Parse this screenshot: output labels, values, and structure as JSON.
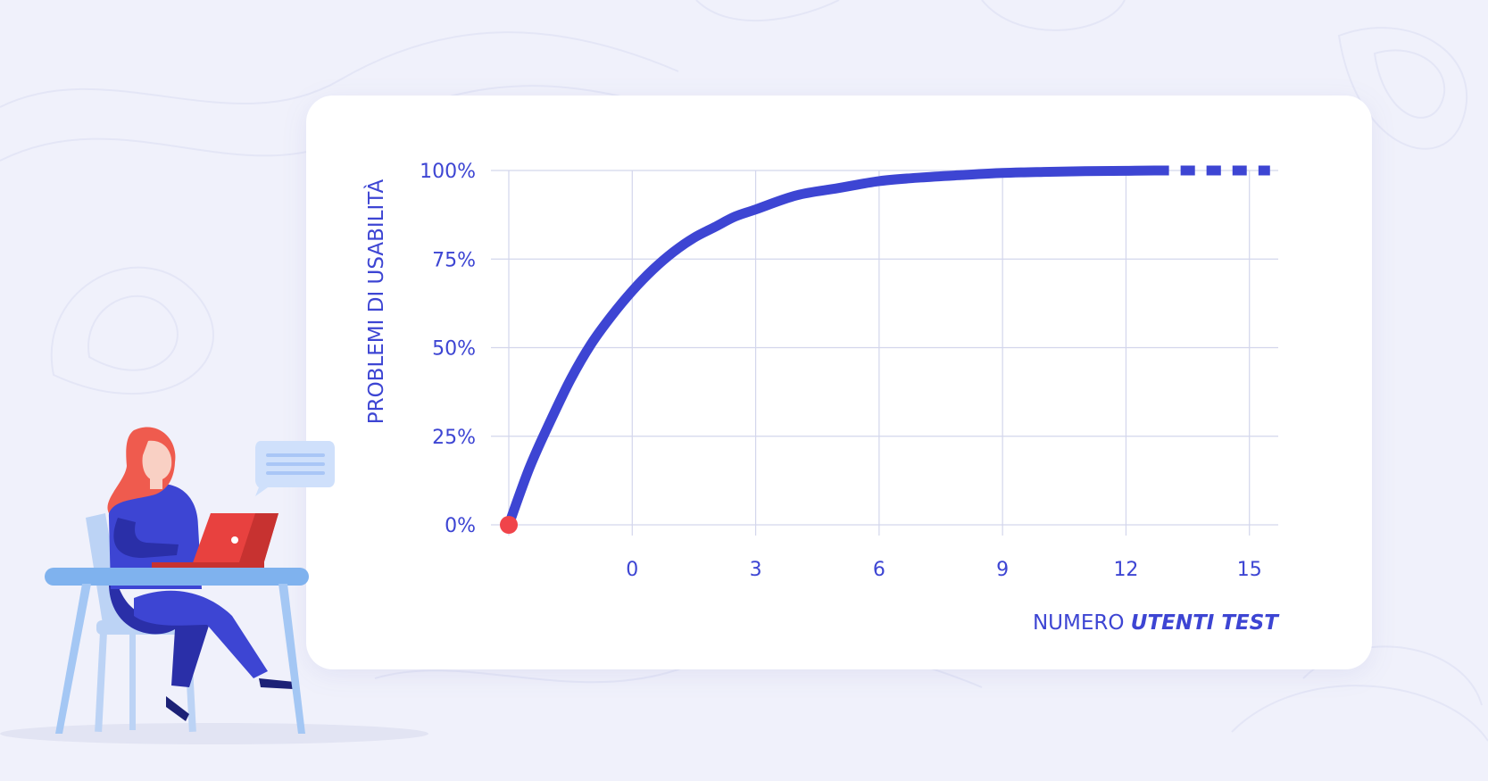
{
  "colors": {
    "background": "#f0f1fb",
    "card": "#ffffff",
    "accent": "#3d45d3",
    "grid": "#d3d6ec",
    "origin_point": "#f0444a",
    "laptop": "#e8413f",
    "desk": "#7fb2ee",
    "hair": "#ef5b4e"
  },
  "chart_data": {
    "type": "line",
    "title": "",
    "ylabel": "PROBLEMI DI USABILITÀ",
    "xlabel": {
      "plain": "NUMERO ",
      "emphasis": "UTENTI TEST"
    },
    "x_ticks": [
      "0",
      "3",
      "6",
      "9",
      "12",
      "15"
    ],
    "y_ticks": [
      "0%",
      "25%",
      "50%",
      "75%",
      "100%"
    ],
    "xlim": [
      -3,
      15.7
    ],
    "ylim": [
      0,
      100
    ],
    "grid": true,
    "series": [
      {
        "style": "solid",
        "x": [
          -3,
          -2.5,
          -2,
          -1.5,
          -1,
          -0.5,
          0,
          0.5,
          1,
          1.5,
          2,
          2.5,
          3,
          4,
          5,
          6,
          7,
          8,
          9,
          10,
          11,
          12,
          12.7
        ],
        "y": [
          0,
          16,
          29,
          41,
          51,
          59,
          66,
          72,
          77,
          81,
          84,
          87,
          89,
          93,
          95,
          97,
          98,
          98.7,
          99.3,
          99.6,
          99.8,
          99.9,
          100
        ]
      },
      {
        "style": "dashed",
        "x": [
          12.7,
          15.5
        ],
        "y": [
          100,
          100
        ]
      }
    ],
    "origin_marker": {
      "x": -3,
      "y": 0
    }
  },
  "illustration": {
    "subject": "woman-working-at-laptop",
    "speech_bubble_lines": 3
  }
}
